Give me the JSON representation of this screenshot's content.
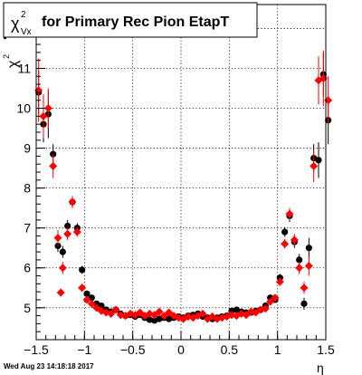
{
  "title": {
    "symbol": "χ",
    "superscript": "2",
    "subscript": "Vx",
    "text": "for Primary Rec Pion EtapT"
  },
  "axis": {
    "ylabel": {
      "symbol": "χ",
      "superscript": "2"
    },
    "xlabel": "η"
  },
  "timestamp": "Wed Aug 23 14:18:18 2017",
  "chart_data": {
    "type": "scatter",
    "grid": true,
    "xlim": [
      -1.5,
      1.5
    ],
    "ylim": [
      4.2,
      12.6
    ],
    "xticks": [
      -1.5,
      -1,
      -0.5,
      0,
      0.5,
      1,
      1.5
    ],
    "xtick_labels": [
      "−1.5",
      "−1",
      "−0.5",
      "0",
      "0.5",
      "1",
      "1.5"
    ],
    "yticks": [
      5,
      6,
      7,
      8,
      9,
      10,
      11,
      12
    ],
    "ytick_labels": [
      "5",
      "6",
      "7",
      "8",
      "9",
      "10",
      "11",
      "12"
    ],
    "series": [
      {
        "color": "#000000",
        "marker": "circle",
        "points": [
          [
            -1.475,
            10.4,
            0.55
          ],
          [
            -1.425,
            9.6,
            0.45
          ],
          [
            -1.375,
            9.85,
            0.6
          ],
          [
            -1.325,
            8.85,
            0.25
          ],
          [
            -1.275,
            6.55,
            0.15
          ],
          [
            -1.225,
            6.4,
            0.15
          ],
          [
            -1.175,
            7.05,
            0.15
          ],
          [
            -1.125,
            7.65,
            0.15
          ],
          [
            -1.075,
            7.0,
            0.12
          ],
          [
            -1.025,
            5.95,
            0.1
          ],
          [
            -0.975,
            5.35,
            0.08
          ],
          [
            -0.925,
            5.25,
            0.07
          ],
          [
            -0.875,
            5.1,
            0.06
          ],
          [
            -0.825,
            5.05,
            0.05
          ],
          [
            -0.775,
            4.95,
            0.05
          ],
          [
            -0.725,
            4.9,
            0.05
          ],
          [
            -0.675,
            4.95,
            0.05
          ],
          [
            -0.625,
            4.85,
            0.05
          ],
          [
            -0.575,
            4.8,
            0.05
          ],
          [
            -0.525,
            4.82,
            0.05
          ],
          [
            -0.475,
            4.78,
            0.05
          ],
          [
            -0.425,
            4.82,
            0.05
          ],
          [
            -0.375,
            4.75,
            0.05
          ],
          [
            -0.325,
            4.7,
            0.05
          ],
          [
            -0.275,
            4.68,
            0.05
          ],
          [
            -0.225,
            4.72,
            0.05
          ],
          [
            -0.175,
            4.75,
            0.05
          ],
          [
            -0.125,
            4.72,
            0.05
          ],
          [
            -0.075,
            4.75,
            0.05
          ],
          [
            -0.025,
            4.78,
            0.05
          ],
          [
            0.025,
            4.75,
            0.05
          ],
          [
            0.075,
            4.8,
            0.05
          ],
          [
            0.125,
            4.82,
            0.05
          ],
          [
            0.175,
            4.85,
            0.05
          ],
          [
            0.225,
            4.78,
            0.05
          ],
          [
            0.275,
            4.75,
            0.05
          ],
          [
            0.325,
            4.72,
            0.05
          ],
          [
            0.375,
            4.75,
            0.05
          ],
          [
            0.425,
            4.78,
            0.05
          ],
          [
            0.475,
            4.8,
            0.05
          ],
          [
            0.525,
            4.92,
            0.05
          ],
          [
            0.575,
            4.95,
            0.05
          ],
          [
            0.625,
            4.9,
            0.05
          ],
          [
            0.675,
            4.88,
            0.05
          ],
          [
            0.725,
            4.88,
            0.05
          ],
          [
            0.775,
            4.92,
            0.05
          ],
          [
            0.825,
            4.95,
            0.05
          ],
          [
            0.875,
            5.05,
            0.06
          ],
          [
            0.925,
            5.25,
            0.07
          ],
          [
            0.975,
            5.2,
            0.08
          ],
          [
            1.025,
            5.75,
            0.1
          ],
          [
            1.075,
            6.9,
            0.12
          ],
          [
            1.125,
            7.3,
            0.15
          ],
          [
            1.175,
            6.65,
            0.15
          ],
          [
            1.225,
            6.2,
            0.15
          ],
          [
            1.275,
            5.1,
            0.15
          ],
          [
            1.325,
            6.5,
            0.25
          ],
          [
            1.375,
            8.75,
            0.35
          ],
          [
            1.425,
            8.7,
            0.45
          ],
          [
            1.475,
            10.85,
            0.55
          ],
          [
            1.525,
            9.7,
            0.6
          ]
        ]
      },
      {
        "color": "#ff0000",
        "marker": "diamond",
        "points": [
          [
            -1.475,
            10.45,
            0.8
          ],
          [
            -1.425,
            9.8,
            0.55
          ],
          [
            -1.375,
            10.0,
            0.5
          ],
          [
            -1.325,
            8.55,
            0.3
          ],
          [
            -1.275,
            6.75,
            0.2
          ],
          [
            -1.225,
            6.0,
            0.15
          ],
          [
            -1.175,
            6.85,
            0.15
          ],
          [
            -1.125,
            7.65,
            0.15
          ],
          [
            -1.075,
            6.9,
            0.12
          ],
          [
            -1.025,
            5.5,
            0.1
          ],
          [
            -0.975,
            5.2,
            0.08
          ],
          [
            -1.245,
            5.38,
            0.1
          ],
          [
            -0.925,
            5.1,
            0.07
          ],
          [
            -0.875,
            5.0,
            0.06
          ],
          [
            -0.825,
            4.92,
            0.05
          ],
          [
            -0.775,
            4.88,
            0.05
          ],
          [
            -0.725,
            4.85,
            0.05
          ],
          [
            -0.675,
            4.95,
            0.05
          ],
          [
            -0.625,
            4.82,
            0.05
          ],
          [
            -0.575,
            4.8,
            0.05
          ],
          [
            -0.525,
            4.85,
            0.05
          ],
          [
            -0.475,
            4.82,
            0.05
          ],
          [
            -0.425,
            4.88,
            0.05
          ],
          [
            -0.375,
            4.8,
            0.05
          ],
          [
            -0.325,
            4.85,
            0.05
          ],
          [
            -0.275,
            4.82,
            0.05
          ],
          [
            -0.225,
            4.9,
            0.05
          ],
          [
            -0.175,
            4.8,
            0.05
          ],
          [
            -0.125,
            4.88,
            0.05
          ],
          [
            -0.075,
            4.8,
            0.05
          ],
          [
            -0.025,
            4.75,
            0.05
          ],
          [
            0.025,
            4.72,
            0.05
          ],
          [
            0.075,
            4.78,
            0.05
          ],
          [
            0.125,
            4.75,
            0.05
          ],
          [
            0.175,
            4.8,
            0.05
          ],
          [
            0.225,
            4.85,
            0.05
          ],
          [
            0.275,
            4.72,
            0.05
          ],
          [
            0.325,
            4.78,
            0.05
          ],
          [
            0.375,
            4.72,
            0.05
          ],
          [
            0.425,
            4.75,
            0.05
          ],
          [
            0.475,
            4.78,
            0.05
          ],
          [
            0.525,
            4.82,
            0.05
          ],
          [
            0.575,
            4.8,
            0.05
          ],
          [
            0.625,
            4.85,
            0.05
          ],
          [
            0.675,
            4.82,
            0.05
          ],
          [
            0.725,
            4.9,
            0.05
          ],
          [
            0.775,
            4.88,
            0.05
          ],
          [
            0.825,
            4.95,
            0.05
          ],
          [
            0.875,
            4.98,
            0.06
          ],
          [
            0.925,
            5.15,
            0.07
          ],
          [
            0.975,
            5.25,
            0.08
          ],
          [
            1.025,
            5.65,
            0.1
          ],
          [
            1.075,
            6.6,
            0.12
          ],
          [
            1.125,
            7.35,
            0.15
          ],
          [
            1.175,
            6.7,
            0.15
          ],
          [
            1.225,
            6.0,
            0.15
          ],
          [
            1.275,
            5.5,
            0.15
          ],
          [
            1.325,
            6.05,
            0.25
          ],
          [
            1.375,
            8.55,
            0.4
          ],
          [
            1.425,
            10.7,
            0.6
          ],
          [
            1.475,
            10.75,
            0.7
          ],
          [
            1.525,
            10.2,
            0.6
          ]
        ]
      }
    ]
  }
}
